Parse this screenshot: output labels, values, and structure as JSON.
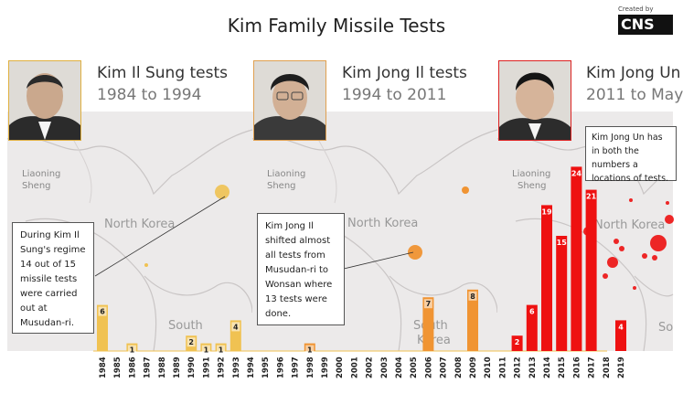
{
  "header": {
    "title": "Kim Family Missile Tests",
    "credit": "Created by",
    "logo_text": "CNS"
  },
  "panels": [
    {
      "title": "Kim Il Sung tests",
      "subtitle": "1984 to 1994",
      "annotation": "During Kim Il Sung's regime 14 out of 15 missile tests were carried out at Musudan-ri.",
      "color": "#f0c252",
      "map_labels": [
        "Liaoning",
        "Sheng",
        "North Korea",
        "South"
      ]
    },
    {
      "title": "Kim Jong Il tests",
      "subtitle": "1994 to 2011",
      "annotation": "Kim Jong Il shifted almost all tests from Musudan-ri to Wonsan where 13 tests were done.",
      "color": "#f09433",
      "map_labels": [
        "Liaoning",
        "Sheng",
        "North Korea",
        "South",
        "Korea"
      ]
    },
    {
      "title": "Kim Jong Un",
      "subtitle": "2011 to May",
      "annotation": "Kim Jong Un has in both the numbers a locations of tests.",
      "color": "#ee1111",
      "map_labels": [
        "Liaoning",
        "Sheng",
        "North Korea",
        "So"
      ]
    }
  ],
  "chart_data": {
    "type": "bar",
    "categories": [
      "1984",
      "1985",
      "1986",
      "1987",
      "1988",
      "1989",
      "1990",
      "1991",
      "1992",
      "1993",
      "1994",
      "1995",
      "1996",
      "1997",
      "1998",
      "1999",
      "2000",
      "2001",
      "2002",
      "2003",
      "2004",
      "2005",
      "2006",
      "2007",
      "2008",
      "2009",
      "2010",
      "2011",
      "2012",
      "2013",
      "2014",
      "2015",
      "2016",
      "2017",
      "2018",
      "2019"
    ],
    "series": [
      {
        "values": [
          6,
          0,
          1,
          0,
          0,
          0,
          2,
          1,
          1,
          4,
          0,
          0,
          0,
          0,
          0,
          0,
          0,
          0,
          0,
          0,
          0,
          0,
          0,
          0,
          0,
          0,
          0,
          0,
          0,
          0,
          0,
          0,
          0,
          0,
          0,
          0
        ]
      },
      {
        "values": [
          0,
          0,
          0,
          0,
          0,
          0,
          0,
          0,
          0,
          0,
          0,
          0,
          0,
          0,
          1,
          0,
          0,
          0,
          0,
          0,
          0,
          0,
          7,
          0,
          0,
          8,
          0,
          0,
          0,
          0,
          0,
          0,
          0,
          0,
          0,
          0
        ]
      },
      {
        "values": [
          0,
          0,
          0,
          0,
          0,
          0,
          0,
          0,
          0,
          0,
          0,
          0,
          0,
          0,
          0,
          0,
          0,
          0,
          0,
          0,
          0,
          0,
          0,
          0,
          0,
          0,
          0,
          0,
          2,
          6,
          19,
          15,
          24,
          21,
          0,
          4
        ]
      }
    ],
    "ylim": [
      0,
      25
    ],
    "grid": false
  }
}
